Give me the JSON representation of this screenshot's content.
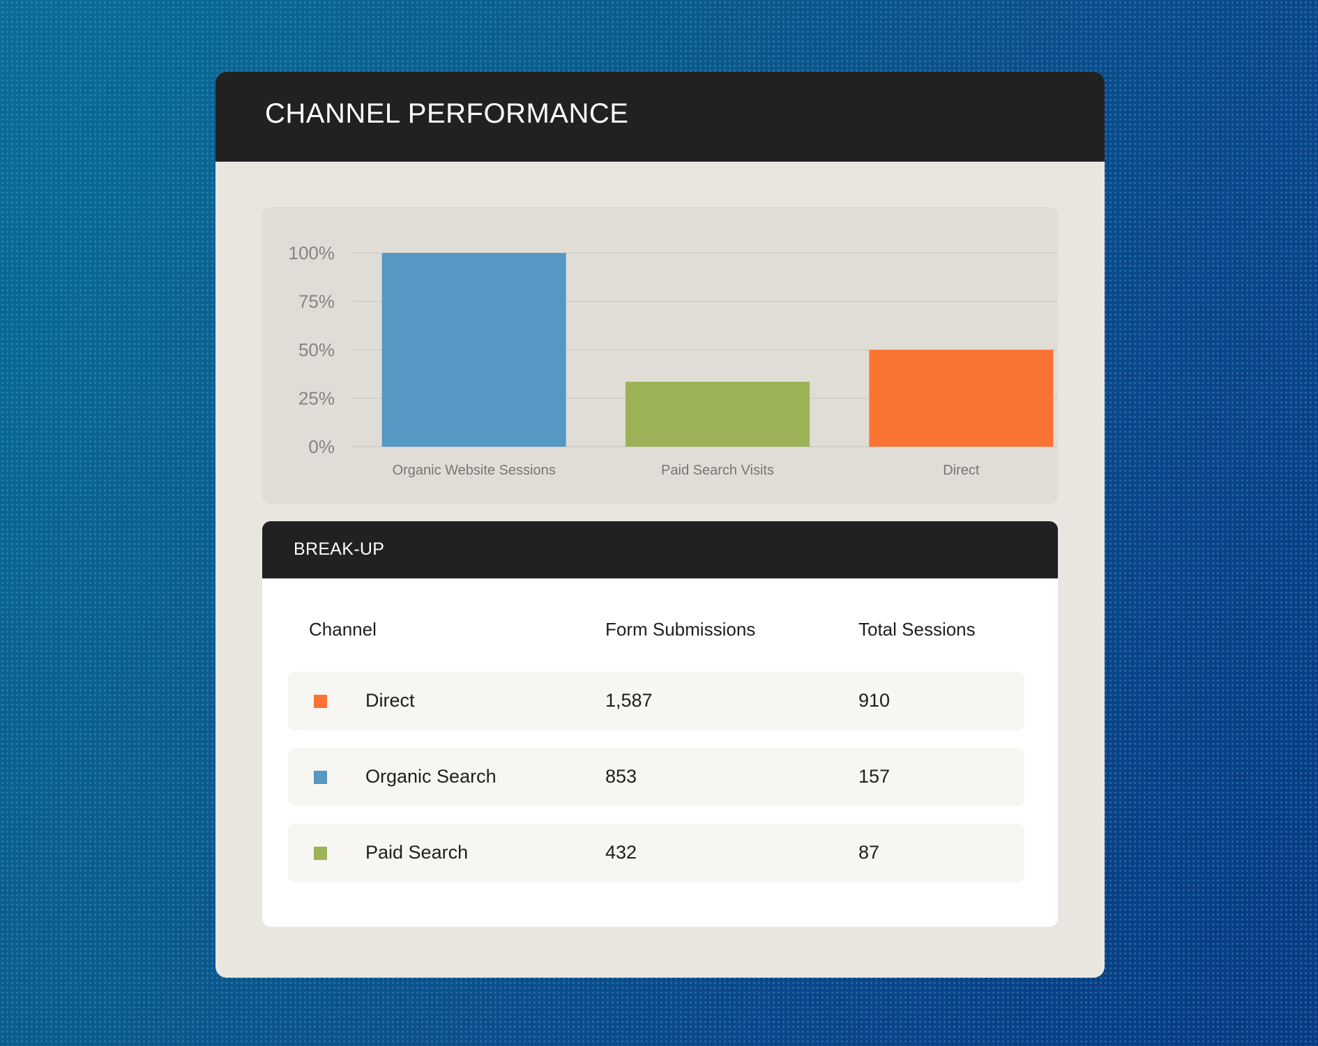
{
  "card": {
    "title": "CHANNEL PERFORMANCE"
  },
  "chart_data": {
    "type": "bar",
    "categories": [
      "Organic Website Sessions",
      "Paid Search Visits",
      "Direct"
    ],
    "values": [
      100,
      33.5,
      50
    ],
    "colors": [
      "#5598c3",
      "#9bb256",
      "#fb7333"
    ],
    "y_ticks": [
      "0%",
      "25%",
      "50%",
      "75%",
      "100%"
    ],
    "ylim": [
      0,
      100
    ],
    "grid": true,
    "legend": "none"
  },
  "breakup": {
    "title": "BREAK-UP",
    "columns": {
      "channel": "Channel",
      "form_submissions": "Form Submissions",
      "total_sessions": "Total Sessions"
    },
    "rows": [
      {
        "channel": "Direct",
        "form_submissions": "1,587",
        "total_sessions": "910",
        "color": "#fb7333"
      },
      {
        "channel": "Organic Search",
        "form_submissions": "853",
        "total_sessions": "157",
        "color": "#5598c3"
      },
      {
        "channel": "Paid Search",
        "form_submissions": "432",
        "total_sessions": "87",
        "color": "#9bb256"
      }
    ]
  }
}
